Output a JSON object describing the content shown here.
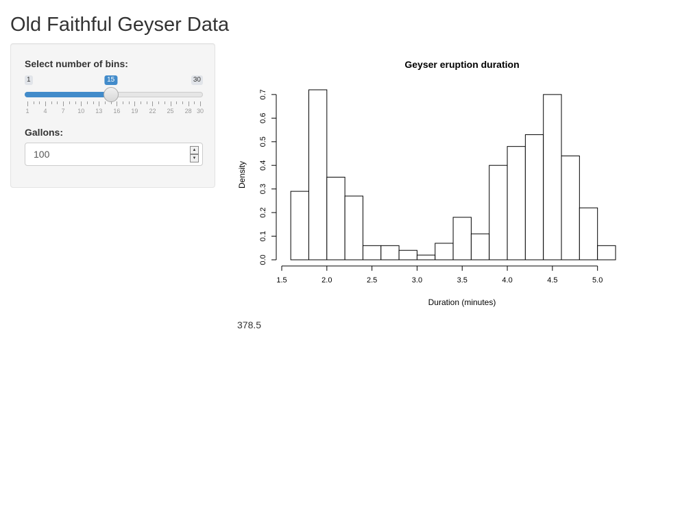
{
  "page": {
    "title": "Old Faithful Geyser Data"
  },
  "sidebar": {
    "bins_label": "Select number of bins:",
    "bins": {
      "min": 1,
      "max": 30,
      "value": 15,
      "min_label": "1",
      "max_label": "30",
      "value_label": "15",
      "tick_labels": [
        "1",
        "4",
        "7",
        "10",
        "13",
        "16",
        "19",
        "22",
        "25",
        "28",
        "30"
      ]
    },
    "gallons_label": "Gallons:",
    "gallons_value": "100",
    "spin_up_icon": "triangle-up",
    "spin_down_icon": "triangle-down"
  },
  "output": {
    "text": "378.5"
  },
  "colors": {
    "accent": "#428bca",
    "panel": "#f5f5f5"
  },
  "chart_data": {
    "type": "bar",
    "title": "Geyser eruption duration",
    "xlabel": "Duration (minutes)",
    "ylabel": "Density",
    "bin_edges": [
      1.6,
      1.8,
      2.0,
      2.2,
      2.4,
      2.6,
      2.8,
      3.0,
      3.2,
      3.4,
      3.6,
      3.8,
      4.0,
      4.2,
      4.4,
      4.6,
      4.8,
      5.0,
      5.2
    ],
    "values": [
      0.29,
      0.72,
      0.35,
      0.27,
      0.06,
      0.06,
      0.04,
      0.02,
      0.07,
      0.18,
      0.11,
      0.4,
      0.48,
      0.53,
      0.7,
      0.44,
      0.22,
      0.06
    ],
    "xticks": [
      1.5,
      2.0,
      2.5,
      3.0,
      3.5,
      4.0,
      4.5,
      5.0
    ],
    "xtick_labels": [
      "1.5",
      "2.0",
      "2.5",
      "3.0",
      "3.5",
      "4.0",
      "4.5",
      "5.0"
    ],
    "yticks": [
      0.0,
      0.1,
      0.2,
      0.3,
      0.4,
      0.5,
      0.6,
      0.7
    ],
    "ytick_labels": [
      "0.0",
      "0.1",
      "0.2",
      "0.3",
      "0.4",
      "0.5",
      "0.6",
      "0.7"
    ],
    "xlim": [
      1.5,
      5.2
    ],
    "ylim": [
      0,
      0.72
    ],
    "grid": false
  }
}
